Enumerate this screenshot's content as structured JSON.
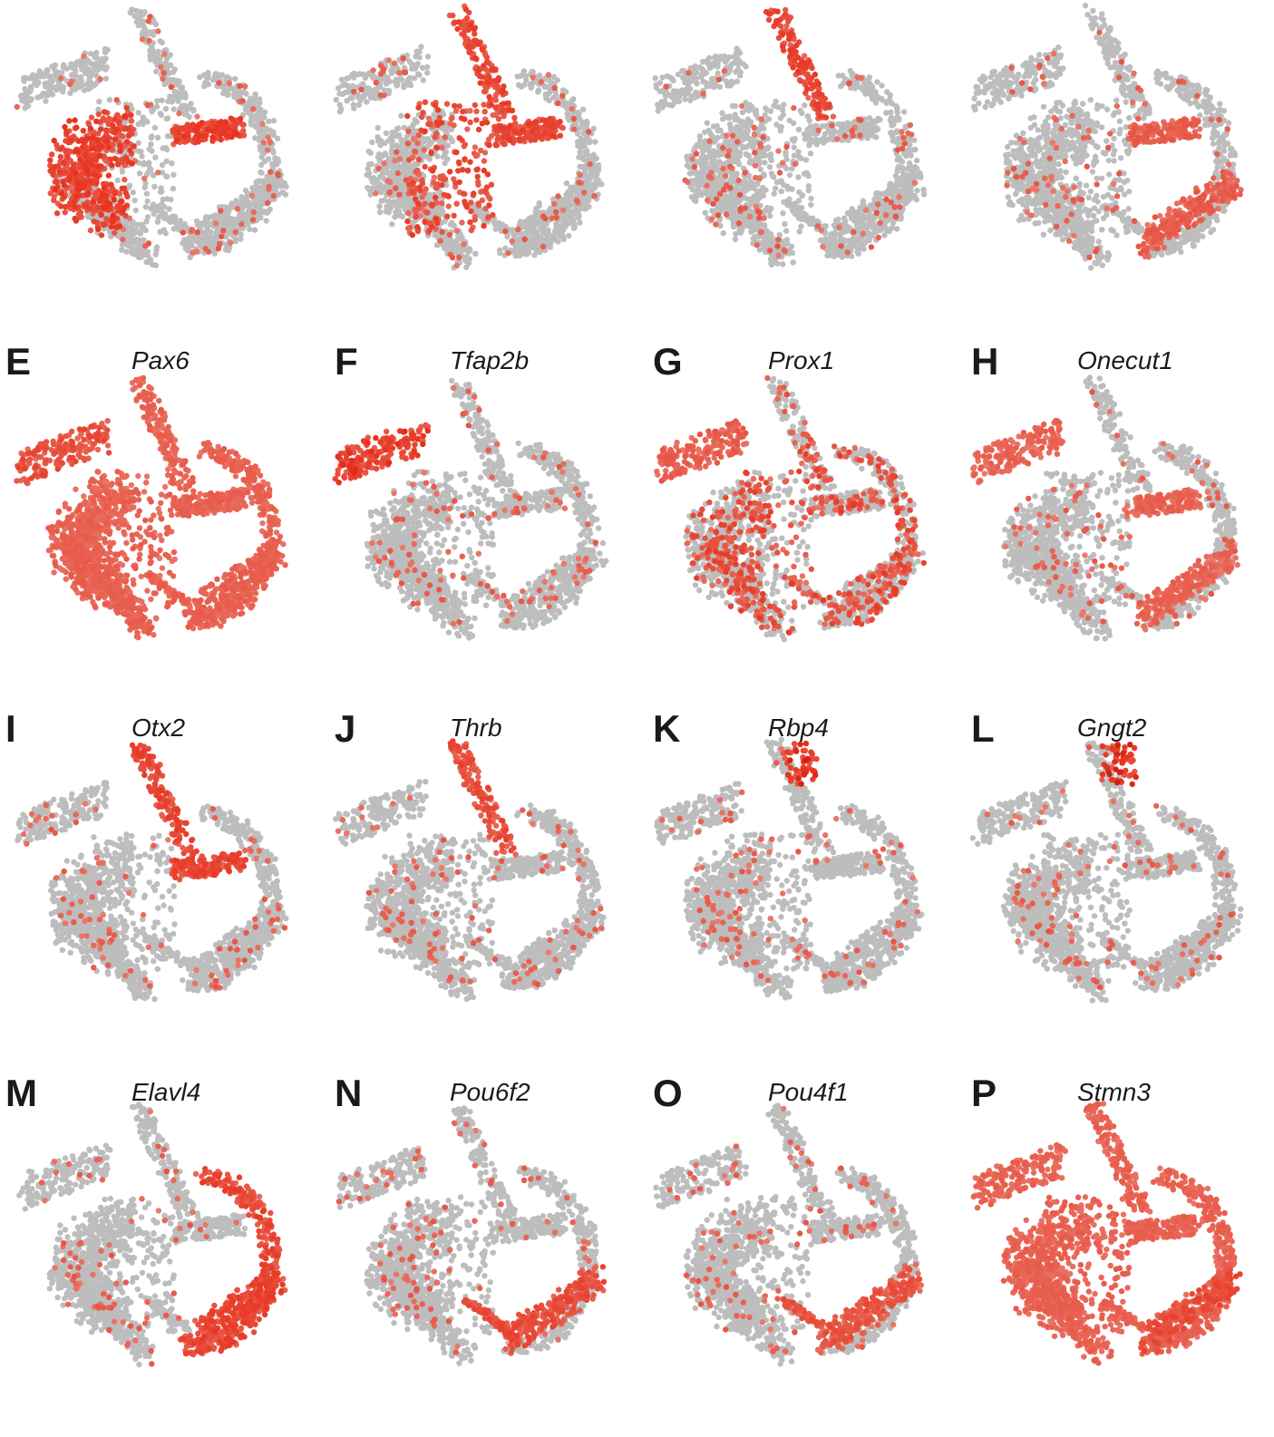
{
  "chart_data": [
    {
      "type": "scatter",
      "panel": "",
      "gene": "",
      "high_regions": [
        "left-lobe",
        "photoreceptor-branch"
      ],
      "intensity": 0.85
    },
    {
      "type": "scatter",
      "panel": "",
      "gene": "",
      "high_regions": [
        "top-stalk",
        "photoreceptor-branch",
        "center"
      ],
      "intensity": 0.8
    },
    {
      "type": "scatter",
      "panel": "",
      "gene": "",
      "high_regions": [
        "top-stalk"
      ],
      "intensity": 0.8
    },
    {
      "type": "scatter",
      "panel": "",
      "gene": "",
      "high_regions": [
        "photoreceptor-branch",
        "bottom-right"
      ],
      "intensity": 0.6
    },
    {
      "type": "scatter",
      "panel": "E",
      "gene": "Pax6",
      "high_regions": [
        "all",
        "left-arm"
      ],
      "intensity": 0.75
    },
    {
      "type": "scatter",
      "panel": "F",
      "gene": "Tfap2b",
      "high_regions": [
        "left-arm"
      ],
      "intensity": 0.9
    },
    {
      "type": "scatter",
      "panel": "G",
      "gene": "Prox1",
      "high_regions": [
        "left-arm",
        "scattered"
      ],
      "intensity": 0.6
    },
    {
      "type": "scatter",
      "panel": "H",
      "gene": "Onecut1",
      "high_regions": [
        "left-arm",
        "photoreceptor-branch",
        "bottom-right"
      ],
      "intensity": 0.55
    },
    {
      "type": "scatter",
      "panel": "I",
      "gene": "Otx2",
      "high_regions": [
        "top-stalk",
        "photoreceptor-branch"
      ],
      "intensity": 0.8
    },
    {
      "type": "scatter",
      "panel": "J",
      "gene": "Thrb",
      "high_regions": [
        "top-stalk"
      ],
      "intensity": 0.75
    },
    {
      "type": "scatter",
      "panel": "K",
      "gene": "Rbp4",
      "high_regions": [
        "top-tip"
      ],
      "intensity": 0.95
    },
    {
      "type": "scatter",
      "panel": "L",
      "gene": "Gngt2",
      "high_regions": [
        "top-tip"
      ],
      "intensity": 0.95
    },
    {
      "type": "scatter",
      "panel": "M",
      "gene": "Elavl4",
      "high_regions": [
        "right-arc",
        "bottom-right"
      ],
      "intensity": 0.8
    },
    {
      "type": "scatter",
      "panel": "N",
      "gene": "Pou6f2",
      "high_regions": [
        "bottom-right",
        "mid-streak"
      ],
      "intensity": 0.75
    },
    {
      "type": "scatter",
      "panel": "O",
      "gene": "Pou4f1",
      "high_regions": [
        "bottom-right",
        "mid-streak"
      ],
      "intensity": 0.7
    },
    {
      "type": "scatter",
      "panel": "P",
      "gene": "Stmn3",
      "high_regions": [
        "bottom-right",
        "all"
      ],
      "intensity": 0.75
    }
  ],
  "colors": {
    "low": "#bdbdbd",
    "high": "#e8321e",
    "max": "#c0140c"
  }
}
